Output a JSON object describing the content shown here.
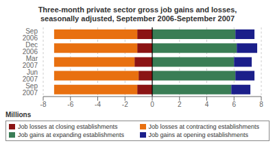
{
  "chart_data": {
    "type": "bar",
    "orientation": "horizontal",
    "stacked": true,
    "title": "Three-month private sector gross job gains and losses,\nseasonally adjusted, September 2006-September 2007",
    "xlabel": "Millions",
    "categories": [
      "Sep 2007",
      "Jun 2007",
      "Mar 2007",
      "Dec 2006",
      "Sep 2006"
    ],
    "series": [
      {
        "name": "Job losses at closing establishments",
        "color": "#8B1414",
        "values": [
          -1.1,
          -1.0,
          -1.3,
          -1.1,
          -1.1
        ]
      },
      {
        "name": "Job losses at contracting establishments",
        "color": "#E87010",
        "values": [
          -6.1,
          -6.2,
          -5.9,
          -6.1,
          -6.1
        ]
      },
      {
        "name": "Job gains at expanding establishments",
        "color": "#3A7D55",
        "values": [
          5.8,
          6.1,
          6.0,
          6.2,
          6.1
        ]
      },
      {
        "name": "Job gains at opening establishments",
        "color": "#1B1F8A",
        "values": [
          1.4,
          1.4,
          1.3,
          1.5,
          1.4
        ]
      }
    ],
    "xlim": [
      -8,
      8
    ],
    "xticks": [
      -8,
      -6,
      -4,
      -2,
      0,
      2,
      4,
      6,
      8
    ],
    "grid": true,
    "legend": "bottom"
  }
}
